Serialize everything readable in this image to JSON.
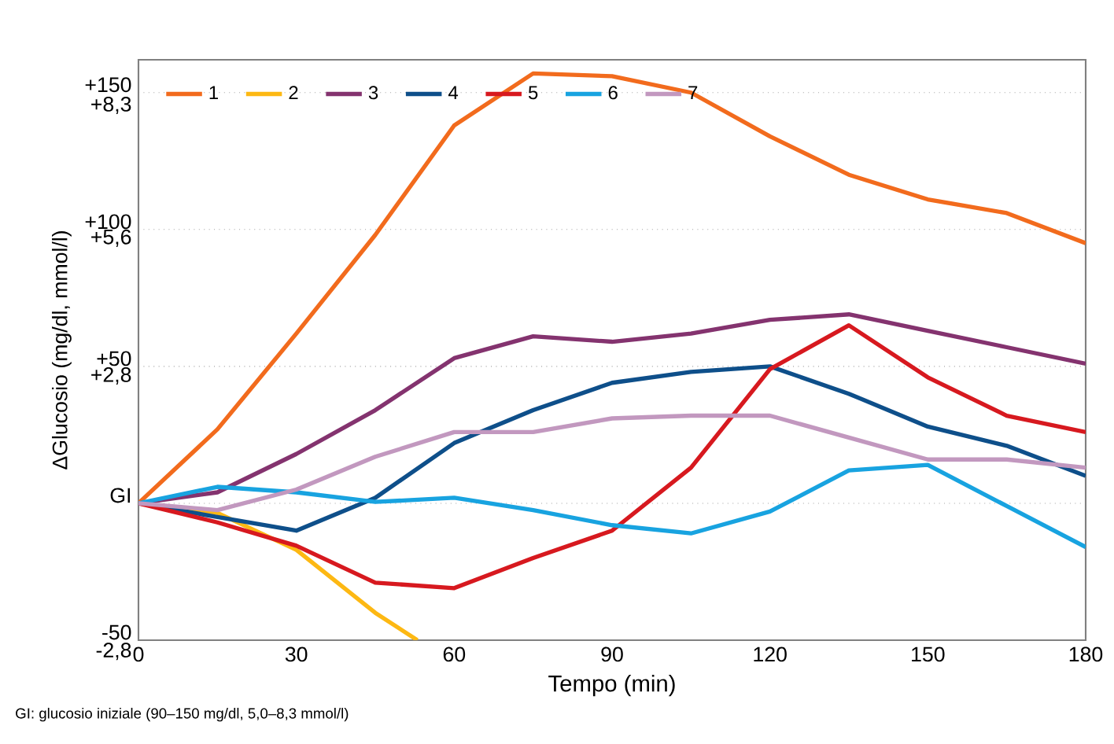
{
  "chart_data": {
    "type": "line",
    "xlabel": "Tempo (min)",
    "ylabel": "ΔGlucosio (mg/dl, mmol/l)",
    "annotations": [
      "GI: glucosio iniziale (90–150 mg/dl, 5,0–8,3 mmol/l)"
    ],
    "x": [
      0,
      15,
      30,
      45,
      60,
      75,
      90,
      105,
      120,
      135,
      150,
      165,
      180
    ],
    "xlim": [
      0,
      180
    ],
    "xticks": [
      0,
      30,
      60,
      90,
      120,
      150,
      180
    ],
    "ylim": [
      -50,
      162
    ],
    "yticks": [
      -50,
      {
        "value": 0,
        "label": "GI"
      },
      {
        "value": 50,
        "label": "+50"
      },
      {
        "value": 100,
        "label": "+100"
      },
      {
        "value": 150,
        "label": "+150"
      }
    ],
    "y2lim": [
      -2.8,
      9.0
    ],
    "y2ticks": [
      {
        "value": -2.8,
        "label": "-2,8"
      },
      {
        "value": 2.8,
        "label": "+2,8"
      },
      {
        "value": 5.6,
        "label": "+5,6"
      },
      {
        "value": 8.3,
        "label": "+8,3"
      }
    ],
    "grid": "y",
    "legend": "top left",
    "line_style": "solid",
    "marker": "none",
    "series": [
      {
        "name": "1",
        "color": "#f26b1d",
        "values": [
          0,
          27,
          62,
          98,
          138,
          157,
          156,
          150,
          134,
          120,
          111,
          106,
          95
        ]
      },
      {
        "name": "2",
        "color": "#fdb813",
        "x": [
          0,
          15,
          30,
          45,
          53
        ],
        "values": [
          0,
          -3.5,
          -17,
          -40,
          -50
        ]
      },
      {
        "name": "3",
        "color": "#84336f",
        "values": [
          0,
          4,
          18,
          34,
          53,
          61,
          59,
          62,
          67,
          69,
          63,
          57,
          51
        ]
      },
      {
        "name": "4",
        "color": "#0e4f8a",
        "values": [
          0,
          -5,
          -10,
          2,
          22,
          34,
          44,
          48,
          50,
          40,
          28,
          21,
          10
        ]
      },
      {
        "name": "5",
        "color": "#d7191f",
        "values": [
          0,
          -7,
          -15.5,
          -29,
          -31,
          -20,
          -10,
          13,
          49,
          65,
          46,
          32,
          26
        ]
      },
      {
        "name": "6",
        "color": "#18a3e0",
        "values": [
          0,
          6,
          4,
          0.5,
          2,
          -2.5,
          -8,
          -11,
          -3,
          12,
          14,
          -1,
          -16
        ]
      },
      {
        "name": "7",
        "color": "#c298bf",
        "values": [
          0,
          -2.5,
          5,
          17,
          26,
          26,
          31,
          32,
          32,
          24,
          16,
          16,
          13
        ]
      }
    ]
  }
}
